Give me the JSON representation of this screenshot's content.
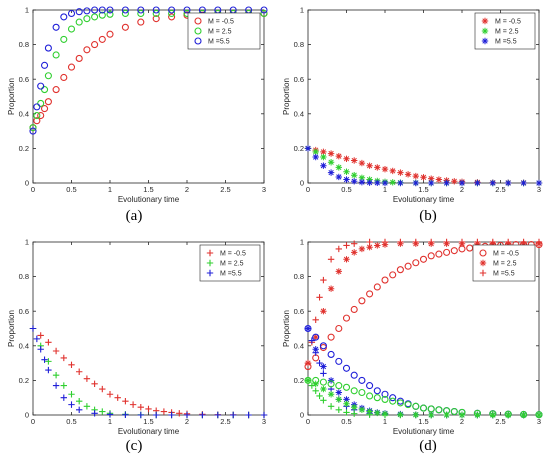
{
  "colors": {
    "red": "#e0322e",
    "green": "#2fcf2f",
    "blue": "#1f1fd8"
  },
  "chart_data": [
    {
      "type": "scatter",
      "panel": "(a)",
      "marker": "circle",
      "xlabel": "Evolutionary time",
      "ylabel": "Proportion",
      "xlim": [
        0,
        3
      ],
      "ylim": [
        0,
        1
      ],
      "xticks": [
        "0",
        "0.5",
        "1",
        "1.5",
        "2",
        "2.5",
        "3"
      ],
      "yticks": [
        "0",
        "0.2",
        "0.4",
        "0.6",
        "0.8",
        "1"
      ],
      "legend": "top-right",
      "series": [
        {
          "name": "M = -0.5",
          "color": "red",
          "x": [
            0,
            0.05,
            0.1,
            0.15,
            0.2,
            0.3,
            0.4,
            0.5,
            0.6,
            0.7,
            0.8,
            0.9,
            1,
            1.2,
            1.4,
            1.6,
            1.8,
            2,
            2.2,
            2.4,
            2.6,
            2.8,
            3
          ],
          "values": [
            0.32,
            0.36,
            0.39,
            0.43,
            0.47,
            0.54,
            0.61,
            0.67,
            0.72,
            0.77,
            0.8,
            0.83,
            0.86,
            0.9,
            0.93,
            0.95,
            0.96,
            0.97,
            0.97,
            0.98,
            0.98,
            0.98,
            0.98
          ]
        },
        {
          "name": "M = 2.5",
          "color": "green",
          "x": [
            0,
            0.05,
            0.1,
            0.15,
            0.2,
            0.3,
            0.4,
            0.5,
            0.6,
            0.7,
            0.8,
            0.9,
            1,
            1.2,
            1.4,
            1.6,
            1.8,
            2,
            2.2,
            2.4,
            2.6,
            2.8,
            3
          ],
          "values": [
            0.32,
            0.39,
            0.46,
            0.54,
            0.62,
            0.74,
            0.83,
            0.89,
            0.93,
            0.95,
            0.96,
            0.97,
            0.975,
            0.98,
            0.98,
            0.98,
            0.98,
            0.98,
            0.98,
            0.98,
            0.98,
            0.98,
            0.98
          ]
        },
        {
          "name": "M =5.5",
          "color": "blue",
          "x": [
            0,
            0.05,
            0.1,
            0.15,
            0.2,
            0.3,
            0.4,
            0.5,
            0.6,
            0.7,
            0.8,
            0.9,
            1,
            1.2,
            1.4,
            1.6,
            1.8,
            2,
            2.2,
            2.4,
            2.6,
            2.8,
            3
          ],
          "values": [
            0.3,
            0.44,
            0.56,
            0.68,
            0.78,
            0.9,
            0.96,
            0.98,
            0.99,
            0.995,
            1,
            1,
            1,
            1,
            1,
            1,
            1,
            1,
            1,
            1,
            1,
            1,
            1
          ]
        }
      ]
    },
    {
      "type": "scatter",
      "panel": "(b)",
      "marker": "star",
      "xlabel": "Evolutionary time",
      "ylabel": "Proportion",
      "xlim": [
        0,
        3
      ],
      "ylim": [
        0,
        1
      ],
      "xticks": [
        "0",
        "0.5",
        "1",
        "1.5",
        "2",
        "2.5",
        "3"
      ],
      "yticks": [
        "0",
        "0.2",
        "0.4",
        "0.6",
        "0.8",
        "1"
      ],
      "legend": "top-right",
      "series": [
        {
          "name": "M = -0.5",
          "color": "red",
          "x": [
            0,
            0.1,
            0.2,
            0.3,
            0.4,
            0.5,
            0.6,
            0.7,
            0.8,
            0.9,
            1,
            1.1,
            1.2,
            1.3,
            1.4,
            1.5,
            1.6,
            1.7,
            1.8,
            1.9,
            2,
            2.2,
            2.4,
            2.6,
            2.8,
            3
          ],
          "values": [
            0.2,
            0.19,
            0.18,
            0.17,
            0.155,
            0.14,
            0.13,
            0.115,
            0.1,
            0.09,
            0.08,
            0.07,
            0.06,
            0.05,
            0.04,
            0.033,
            0.025,
            0.02,
            0.015,
            0.01,
            0.007,
            0.004,
            0.002,
            0.001,
            0.001,
            0
          ]
        },
        {
          "name": "M = 2.5",
          "color": "green",
          "x": [
            0,
            0.1,
            0.2,
            0.3,
            0.4,
            0.5,
            0.6,
            0.7,
            0.8,
            0.9,
            1,
            1.1,
            1.2,
            1.4,
            1.6,
            1.8,
            2,
            2.2,
            2.4,
            2.6,
            2.8,
            3
          ],
          "values": [
            0.2,
            0.18,
            0.15,
            0.12,
            0.09,
            0.065,
            0.045,
            0.03,
            0.02,
            0.012,
            0.007,
            0.004,
            0.002,
            0.001,
            0,
            0,
            0,
            0,
            0,
            0,
            0,
            0
          ]
        },
        {
          "name": "M =5.5",
          "color": "blue",
          "x": [
            0,
            0.1,
            0.2,
            0.3,
            0.4,
            0.5,
            0.6,
            0.7,
            0.8,
            0.9,
            1,
            1.2,
            1.4,
            1.6,
            1.8,
            2,
            2.2,
            2.4,
            2.6,
            2.8,
            3
          ],
          "values": [
            0.2,
            0.15,
            0.1,
            0.06,
            0.035,
            0.02,
            0.01,
            0.005,
            0.002,
            0.001,
            0,
            0,
            0,
            0,
            0,
            0,
            0,
            0,
            0,
            0,
            0
          ]
        }
      ]
    },
    {
      "type": "scatter",
      "panel": "(c)",
      "marker": "plus",
      "xlabel": "Evolutionary time",
      "ylabel": "Proportion",
      "xlim": [
        0,
        3
      ],
      "ylim": [
        0,
        1
      ],
      "xticks": [
        "0",
        "0.5",
        "1",
        "1.5",
        "2",
        "2.5",
        "3"
      ],
      "yticks": [
        "0",
        "0.2",
        "0.4",
        "0.6",
        "0.8",
        "1"
      ],
      "legend": "top-right",
      "series": [
        {
          "name": "M = -0.5",
          "color": "red",
          "x": [
            0,
            0.1,
            0.2,
            0.3,
            0.4,
            0.5,
            0.6,
            0.7,
            0.8,
            0.9,
            1,
            1.1,
            1.2,
            1.3,
            1.4,
            1.5,
            1.6,
            1.7,
            1.8,
            1.9,
            2,
            2.2,
            2.4,
            2.6,
            2.8,
            3
          ],
          "values": [
            0.5,
            0.46,
            0.42,
            0.37,
            0.33,
            0.29,
            0.25,
            0.21,
            0.18,
            0.15,
            0.12,
            0.1,
            0.08,
            0.06,
            0.045,
            0.035,
            0.025,
            0.02,
            0.015,
            0.01,
            0.007,
            0.004,
            0.002,
            0.001,
            0,
            0
          ]
        },
        {
          "name": "M = 2.5",
          "color": "green",
          "x": [
            0,
            0.1,
            0.2,
            0.3,
            0.4,
            0.5,
            0.6,
            0.7,
            0.8,
            0.9,
            1,
            1.2,
            1.4,
            1.6,
            1.8,
            2,
            2.2,
            2.4,
            2.6,
            2.8,
            3
          ],
          "values": [
            0.5,
            0.4,
            0.31,
            0.23,
            0.17,
            0.12,
            0.08,
            0.05,
            0.03,
            0.02,
            0.01,
            0.004,
            0.001,
            0,
            0,
            0,
            0,
            0,
            0,
            0,
            0
          ]
        },
        {
          "name": "M =5.5",
          "color": "blue",
          "x": [
            0,
            0.05,
            0.1,
            0.15,
            0.2,
            0.3,
            0.4,
            0.5,
            0.6,
            0.8,
            1,
            1.2,
            1.4,
            1.6,
            1.8,
            2,
            2.2,
            2.4,
            2.6,
            2.8,
            3
          ],
          "values": [
            0.5,
            0.44,
            0.38,
            0.32,
            0.26,
            0.17,
            0.1,
            0.06,
            0.03,
            0.01,
            0.003,
            0.001,
            0,
            0,
            0,
            0,
            0,
            0,
            0,
            0,
            0
          ]
        }
      ]
    },
    {
      "type": "scatter",
      "panel": "(d)",
      "marker": "mixed",
      "xlabel": "Evolutionary time",
      "ylabel": "Proportion",
      "xlim": [
        0,
        3
      ],
      "ylim": [
        0,
        1
      ],
      "xticks": [
        "0",
        "0.5",
        "1",
        "1.5",
        "2",
        "2.5",
        "3"
      ],
      "yticks": [
        "0",
        "0.2",
        "0.4",
        "0.6",
        "0.8",
        "1"
      ],
      "legend": "top-right",
      "legend_entries": [
        {
          "name": "M = -0.5",
          "color": "red",
          "marker": "circle"
        },
        {
          "name": "M = 2.5",
          "color": "red",
          "marker": "star"
        },
        {
          "name": "M =5.5",
          "color": "red",
          "marker": "plus"
        }
      ],
      "series": [
        {
          "color": "red",
          "marker": "circle",
          "x": [
            0,
            0.1,
            0.2,
            0.3,
            0.4,
            0.5,
            0.6,
            0.7,
            0.8,
            0.9,
            1,
            1.1,
            1.2,
            1.3,
            1.4,
            1.5,
            1.6,
            1.7,
            1.8,
            1.9,
            2,
            2.1,
            2.2,
            2.3,
            2.4,
            2.5,
            2.6,
            2.7,
            2.8,
            2.9,
            3
          ],
          "values": [
            0.28,
            0.33,
            0.39,
            0.45,
            0.5,
            0.56,
            0.61,
            0.66,
            0.7,
            0.74,
            0.78,
            0.81,
            0.84,
            0.86,
            0.88,
            0.9,
            0.92,
            0.93,
            0.94,
            0.95,
            0.96,
            0.965,
            0.97,
            0.975,
            0.98,
            0.98,
            0.98,
            0.985,
            0.985,
            0.985,
            0.985
          ]
        },
        {
          "color": "red",
          "marker": "star",
          "x": [
            0,
            0.1,
            0.2,
            0.3,
            0.4,
            0.5,
            0.6,
            0.7,
            0.8,
            0.9,
            1,
            1.2,
            1.4,
            1.6,
            1.8,
            2,
            2.2,
            2.4,
            2.6,
            2.8,
            3
          ],
          "values": [
            0.3,
            0.45,
            0.6,
            0.73,
            0.83,
            0.9,
            0.94,
            0.96,
            0.97,
            0.98,
            0.985,
            0.99,
            0.99,
            0.99,
            0.99,
            0.99,
            0.99,
            0.99,
            0.99,
            0.99,
            0.99
          ]
        },
        {
          "color": "red",
          "marker": "plus",
          "x": [
            0,
            0.05,
            0.1,
            0.15,
            0.2,
            0.3,
            0.4,
            0.5,
            0.6,
            0.8,
            1,
            1.2,
            1.4,
            1.6,
            1.8,
            2,
            2.2,
            2.4,
            2.6,
            2.8,
            3
          ],
          "values": [
            0.3,
            0.42,
            0.55,
            0.68,
            0.78,
            0.9,
            0.96,
            0.98,
            0.99,
            1,
            1,
            1,
            1,
            1,
            1,
            1,
            1,
            1,
            1,
            1,
            1
          ]
        },
        {
          "color": "blue",
          "marker": "circle",
          "x": [
            0,
            0.1,
            0.2,
            0.3,
            0.4,
            0.5,
            0.6,
            0.7,
            0.8,
            0.9,
            1,
            1.1,
            1.2,
            1.3,
            1.4,
            1.5,
            1.6,
            1.7,
            1.8,
            1.9,
            2,
            2.2,
            2.4,
            2.6,
            2.8,
            3
          ],
          "values": [
            0.5,
            0.45,
            0.4,
            0.35,
            0.31,
            0.27,
            0.23,
            0.2,
            0.17,
            0.14,
            0.12,
            0.1,
            0.08,
            0.065,
            0.05,
            0.04,
            0.035,
            0.03,
            0.025,
            0.02,
            0.015,
            0.01,
            0.008,
            0.005,
            0.003,
            0.002
          ]
        },
        {
          "color": "blue",
          "marker": "star",
          "x": [
            0,
            0.1,
            0.2,
            0.3,
            0.4,
            0.5,
            0.6,
            0.7,
            0.8,
            0.9,
            1,
            1.2,
            1.4,
            1.6,
            1.8,
            2,
            2.2,
            2.4,
            2.6,
            2.8,
            3
          ],
          "values": [
            0.5,
            0.38,
            0.28,
            0.2,
            0.13,
            0.09,
            0.06,
            0.04,
            0.025,
            0.015,
            0.01,
            0.005,
            0.002,
            0.001,
            0,
            0,
            0,
            0,
            0,
            0,
            0
          ]
        },
        {
          "color": "blue",
          "marker": "plus",
          "x": [
            0,
            0.05,
            0.1,
            0.15,
            0.2,
            0.3,
            0.4,
            0.5,
            0.6,
            0.8,
            1,
            1.2,
            1.4,
            1.6,
            1.8,
            2,
            2.2,
            2.4,
            2.6,
            2.8,
            3
          ],
          "values": [
            0.5,
            0.43,
            0.36,
            0.3,
            0.24,
            0.15,
            0.09,
            0.05,
            0.03,
            0.01,
            0.003,
            0.001,
            0,
            0,
            0,
            0,
            0,
            0,
            0,
            0,
            0
          ]
        },
        {
          "color": "green",
          "marker": "circle",
          "x": [
            0,
            0.1,
            0.2,
            0.3,
            0.4,
            0.5,
            0.6,
            0.7,
            0.8,
            0.9,
            1,
            1.1,
            1.2,
            1.3,
            1.4,
            1.5,
            1.6,
            1.7,
            1.8,
            1.9,
            2,
            2.2,
            2.4,
            2.6,
            2.8,
            3
          ],
          "values": [
            0.2,
            0.2,
            0.19,
            0.18,
            0.17,
            0.16,
            0.14,
            0.13,
            0.11,
            0.1,
            0.09,
            0.08,
            0.07,
            0.06,
            0.05,
            0.04,
            0.035,
            0.03,
            0.025,
            0.02,
            0.015,
            0.01,
            0.007,
            0.005,
            0.003,
            0.002
          ]
        },
        {
          "color": "green",
          "marker": "star",
          "x": [
            0,
            0.1,
            0.2,
            0.3,
            0.4,
            0.5,
            0.6,
            0.7,
            0.8,
            0.9,
            1,
            1.2,
            1.4,
            1.6,
            1.8,
            2,
            2.2,
            2.4,
            2.6,
            2.8,
            3
          ],
          "values": [
            0.2,
            0.18,
            0.15,
            0.12,
            0.09,
            0.065,
            0.045,
            0.03,
            0.02,
            0.012,
            0.007,
            0.002,
            0.001,
            0,
            0,
            0,
            0,
            0,
            0,
            0,
            0
          ]
        },
        {
          "color": "green",
          "marker": "plus",
          "x": [
            0,
            0.05,
            0.1,
            0.15,
            0.2,
            0.3,
            0.4,
            0.5,
            0.6,
            0.8,
            1,
            1.2,
            1.4,
            1.6,
            1.8,
            2,
            2.2,
            2.4,
            2.6,
            2.8,
            3
          ],
          "values": [
            0.2,
            0.17,
            0.14,
            0.11,
            0.085,
            0.05,
            0.03,
            0.015,
            0.008,
            0.002,
            0,
            0,
            0,
            0,
            0,
            0,
            0,
            0,
            0,
            0,
            0
          ]
        }
      ]
    }
  ]
}
